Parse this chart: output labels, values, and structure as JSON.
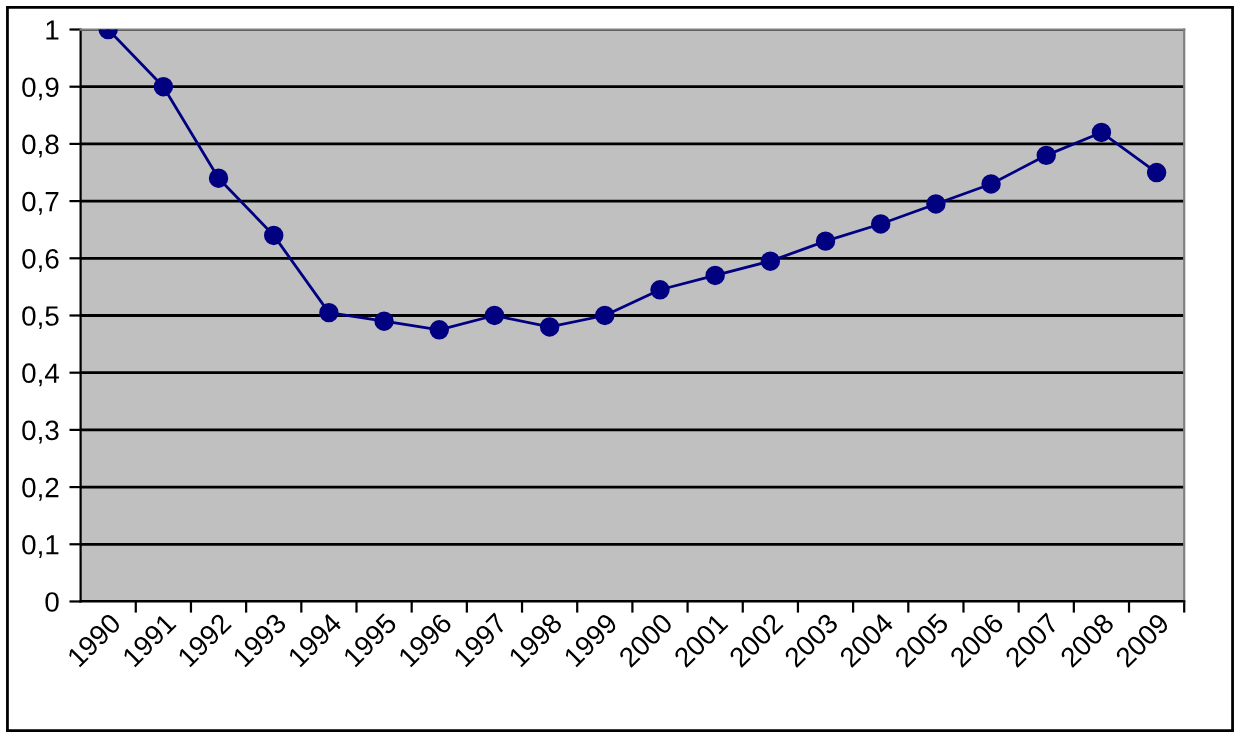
{
  "chart_data": {
    "type": "line",
    "categories": [
      "1990",
      "1991",
      "1992",
      "1993",
      "1994",
      "1995",
      "1996",
      "1997",
      "1998",
      "1999",
      "2000",
      "2001",
      "2002",
      "2003",
      "2004",
      "2005",
      "2006",
      "2007",
      "2008",
      "2009"
    ],
    "series": [
      {
        "color": "#000080",
        "values": [
          1.0,
          0.9,
          0.74,
          0.64,
          0.505,
          0.49,
          0.475,
          0.5,
          0.48,
          0.5,
          0.545,
          0.57,
          0.595,
          0.63,
          0.66,
          0.695,
          0.73,
          0.78,
          0.82,
          0.75
        ]
      }
    ],
    "ylim": [
      0,
      1
    ],
    "yticks": [
      0,
      {
        "value": 0.1,
        "label": "0,1"
      },
      {
        "value": 0.2,
        "label": "0,2"
      },
      {
        "value": 0.3,
        "label": "0,3"
      },
      {
        "value": 0.4,
        "label": "0,4"
      },
      {
        "value": 0.5,
        "label": "0,5"
      },
      {
        "value": 0.6,
        "label": "0,6"
      },
      {
        "value": 0.7,
        "label": "0,7"
      },
      {
        "value": 0.8,
        "label": "0,8"
      },
      {
        "value": 0.9,
        "label": "0,9"
      },
      1
    ],
    "grid": "y",
    "marker": "circle",
    "line_style": "solid",
    "legend": false
  }
}
